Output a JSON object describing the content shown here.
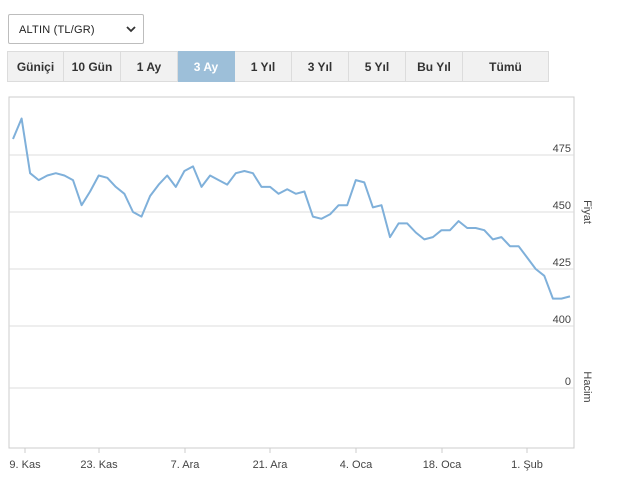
{
  "selector": {
    "value": "ALTIN (TL/GR)",
    "icon": "chevron-down-icon"
  },
  "tabs": [
    {
      "label": "Güniçi"
    },
    {
      "label": "10 Gün"
    },
    {
      "label": "1 Ay"
    },
    {
      "label": "3 Ay",
      "active": true
    },
    {
      "label": "1 Yıl"
    },
    {
      "label": "3 Yıl"
    },
    {
      "label": "5 Yıl"
    },
    {
      "label": "Bu Yıl"
    },
    {
      "label": "Tümü"
    }
  ],
  "colors": {
    "line": "#7fb0da",
    "active_tab": "#9dbfd9",
    "grid": "#dddddd"
  },
  "chart_data": {
    "type": "line",
    "price_axis_label": "Fiyat",
    "volume_axis_label": "Hacim",
    "price_ticks": [
      400,
      425,
      450,
      475
    ],
    "price_ylim": [
      400,
      500
    ],
    "volume_ticks": [
      0
    ],
    "x_tick_labels": [
      "9. Kas",
      "23. Kas",
      "7. Ara",
      "21. Ara",
      "4. Oca",
      "18. Oca",
      "1. Şub"
    ],
    "grid": true,
    "series": [
      {
        "values": [
          482,
          491,
          467,
          464,
          466,
          467,
          466,
          464,
          453,
          459,
          466,
          465,
          461,
          458,
          450,
          448,
          457,
          462,
          466,
          461,
          468,
          470,
          461,
          466,
          464,
          462,
          467,
          468,
          467,
          461,
          461,
          458,
          460,
          458,
          459,
          448,
          447,
          449,
          453,
          453,
          464,
          463,
          452,
          453,
          439,
          445,
          445,
          441,
          438,
          439,
          442,
          442,
          446,
          443,
          443,
          442,
          438,
          439,
          435,
          435,
          430,
          425,
          422,
          412,
          412,
          413
        ]
      }
    ]
  }
}
